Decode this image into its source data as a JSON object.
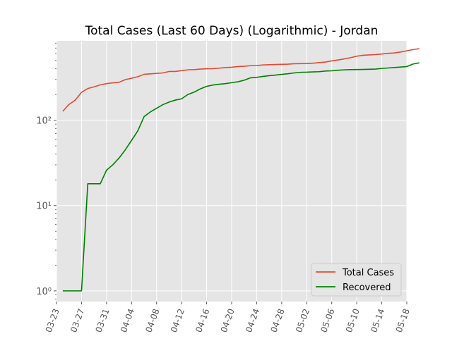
{
  "chart_data": {
    "type": "line",
    "title": "Total Cases (Last 60 Days) (Logarithmic) - Jordan",
    "xlabel": "",
    "ylabel": "",
    "yscale": "log",
    "ylim": [
      0.75,
      850
    ],
    "xlim": [
      "2020-03-23",
      "2020-05-18"
    ],
    "grid": true,
    "legend_position": "lower-right",
    "x_tick_labels": [
      "03-23",
      "03-27",
      "03-31",
      "04-04",
      "04-08",
      "04-12",
      "04-16",
      "04-20",
      "04-24",
      "04-28",
      "05-02",
      "05-06",
      "05-10",
      "05-14",
      "05-18"
    ],
    "y_tick_labels": [
      {
        "value": 1,
        "label": "10⁰"
      },
      {
        "value": 10,
        "label": "10¹"
      },
      {
        "value": 100,
        "label": "10²"
      }
    ],
    "colors": {
      "background": "#e5e5e5",
      "grid": "#ffffff",
      "text": "#555555"
    },
    "series": [
      {
        "name": "Total Cases",
        "color": "#e24a33",
        "points": [
          [
            "2020-03-24",
            127
          ],
          [
            "2020-03-25",
            153
          ],
          [
            "2020-03-26",
            172
          ],
          [
            "2020-03-27",
            212
          ],
          [
            "2020-03-28",
            235
          ],
          [
            "2020-03-29",
            246
          ],
          [
            "2020-03-30",
            259
          ],
          [
            "2020-03-31",
            268
          ],
          [
            "2020-04-01",
            274
          ],
          [
            "2020-04-02",
            278
          ],
          [
            "2020-04-03",
            299
          ],
          [
            "2020-04-04",
            310
          ],
          [
            "2020-04-05",
            323
          ],
          [
            "2020-04-06",
            345
          ],
          [
            "2020-04-07",
            349
          ],
          [
            "2020-04-08",
            353
          ],
          [
            "2020-04-09",
            358
          ],
          [
            "2020-04-10",
            372
          ],
          [
            "2020-04-11",
            372
          ],
          [
            "2020-04-12",
            381
          ],
          [
            "2020-04-13",
            389
          ],
          [
            "2020-04-14",
            391
          ],
          [
            "2020-04-15",
            397
          ],
          [
            "2020-04-16",
            401
          ],
          [
            "2020-04-17",
            402
          ],
          [
            "2020-04-18",
            407
          ],
          [
            "2020-04-19",
            413
          ],
          [
            "2020-04-20",
            417
          ],
          [
            "2020-04-21",
            425
          ],
          [
            "2020-04-22",
            428
          ],
          [
            "2020-04-23",
            435
          ],
          [
            "2020-04-24",
            437
          ],
          [
            "2020-04-25",
            444
          ],
          [
            "2020-04-26",
            447
          ],
          [
            "2020-04-27",
            449
          ],
          [
            "2020-04-28",
            451
          ],
          [
            "2020-04-29",
            453
          ],
          [
            "2020-04-30",
            459
          ],
          [
            "2020-05-01",
            460
          ],
          [
            "2020-05-02",
            461
          ],
          [
            "2020-05-03",
            465
          ],
          [
            "2020-05-04",
            473
          ],
          [
            "2020-05-05",
            480
          ],
          [
            "2020-05-06",
            495
          ],
          [
            "2020-05-07",
            508
          ],
          [
            "2020-05-08",
            522
          ],
          [
            "2020-05-09",
            540
          ],
          [
            "2020-05-10",
            562
          ],
          [
            "2020-05-11",
            576
          ],
          [
            "2020-05-12",
            582
          ],
          [
            "2020-05-13",
            587
          ],
          [
            "2020-05-14",
            596
          ],
          [
            "2020-05-15",
            607
          ],
          [
            "2020-05-16",
            613
          ],
          [
            "2020-05-17",
            629
          ],
          [
            "2020-05-18",
            650
          ],
          [
            "2020-05-19",
            672
          ],
          [
            "2020-05-20",
            689
          ]
        ]
      },
      {
        "name": "Recovered",
        "color": "#008000",
        "points": [
          [
            "2020-03-24",
            1
          ],
          [
            "2020-03-25",
            1
          ],
          [
            "2020-03-26",
            1
          ],
          [
            "2020-03-27",
            1
          ],
          [
            "2020-03-28",
            18
          ],
          [
            "2020-03-29",
            18
          ],
          [
            "2020-03-30",
            18
          ],
          [
            "2020-03-31",
            26
          ],
          [
            "2020-04-01",
            30
          ],
          [
            "2020-04-02",
            36
          ],
          [
            "2020-04-03",
            45
          ],
          [
            "2020-04-04",
            58
          ],
          [
            "2020-04-05",
            75
          ],
          [
            "2020-04-06",
            110
          ],
          [
            "2020-04-07",
            125
          ],
          [
            "2020-04-08",
            138
          ],
          [
            "2020-04-09",
            152
          ],
          [
            "2020-04-10",
            163
          ],
          [
            "2020-04-11",
            172
          ],
          [
            "2020-04-12",
            178
          ],
          [
            "2020-04-13",
            200
          ],
          [
            "2020-04-14",
            213
          ],
          [
            "2020-04-15",
            233
          ],
          [
            "2020-04-16",
            249
          ],
          [
            "2020-04-17",
            258
          ],
          [
            "2020-04-18",
            264
          ],
          [
            "2020-04-19",
            268
          ],
          [
            "2020-04-20",
            275
          ],
          [
            "2020-04-21",
            282
          ],
          [
            "2020-04-22",
            294
          ],
          [
            "2020-04-23",
            313
          ],
          [
            "2020-04-24",
            318
          ],
          [
            "2020-04-25",
            326
          ],
          [
            "2020-04-26",
            332
          ],
          [
            "2020-04-27",
            338
          ],
          [
            "2020-04-28",
            344
          ],
          [
            "2020-04-29",
            350
          ],
          [
            "2020-04-30",
            358
          ],
          [
            "2020-05-01",
            364
          ],
          [
            "2020-05-02",
            365
          ],
          [
            "2020-05-03",
            368
          ],
          [
            "2020-05-04",
            370
          ],
          [
            "2020-05-05",
            377
          ],
          [
            "2020-05-06",
            379
          ],
          [
            "2020-05-07",
            385
          ],
          [
            "2020-05-08",
            389
          ],
          [
            "2020-05-09",
            391
          ],
          [
            "2020-05-10",
            392
          ],
          [
            "2020-05-11",
            393
          ],
          [
            "2020-05-12",
            395
          ],
          [
            "2020-05-13",
            397
          ],
          [
            "2020-05-14",
            404
          ],
          [
            "2020-05-15",
            409
          ],
          [
            "2020-05-16",
            414
          ],
          [
            "2020-05-17",
            419
          ],
          [
            "2020-05-18",
            425
          ],
          [
            "2020-05-19",
            455
          ],
          [
            "2020-05-20",
            470
          ]
        ]
      }
    ]
  }
}
